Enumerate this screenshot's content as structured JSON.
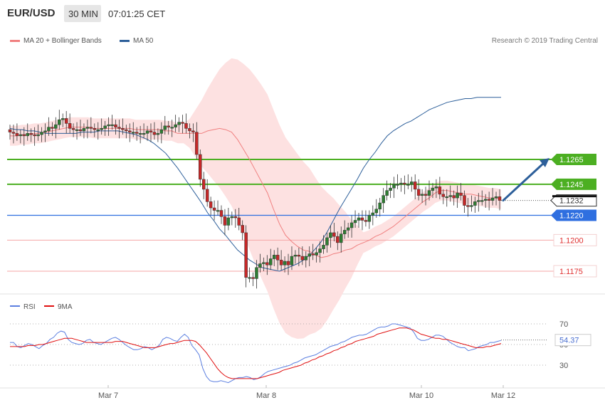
{
  "header": {
    "symbol": "EUR/USD",
    "timeframe": "30 MIN",
    "time": "07:01:25 CET"
  },
  "legend": {
    "ma20_label": "MA 20 + Bollinger Bands",
    "ma50_label": "MA 50",
    "copyright": "Research © 2019 Trading Central"
  },
  "colors": {
    "ma20": "#f08080",
    "ma50": "#2d5f9a",
    "band_fill": "#fde1e1",
    "candle_up": "#2e7d32",
    "candle_down": "#c62828",
    "target_line": "#4caf22",
    "pivot_line": "#2f6fe0",
    "support_line": "#f4a6a6",
    "arrow": "#2d5f9a",
    "rsi": "#5b7fe0",
    "rsi_ma": "#e01010"
  },
  "chart_data": [
    {
      "type": "candlestick",
      "title": "EUR/USD 30 MIN",
      "ylim": [
        1.115,
        1.1315
      ],
      "x_ticks": [
        "Mar 7",
        "Mar 8",
        "Mar 10",
        "Mar 12"
      ],
      "levels": [
        {
          "name": "target_2",
          "value": 1.1265,
          "label": "1.1265",
          "style": "target"
        },
        {
          "name": "target_1",
          "value": 1.1245,
          "label": "1.1245",
          "style": "target"
        },
        {
          "name": "last",
          "value": 1.1232,
          "label": "1.1232",
          "style": "last"
        },
        {
          "name": "pivot",
          "value": 1.122,
          "label": "1.1220",
          "style": "pivot"
        },
        {
          "name": "support_1",
          "value": 1.12,
          "label": "1.1200",
          "style": "support"
        },
        {
          "name": "support_2",
          "value": 1.1175,
          "label": "1.1175",
          "style": "support"
        }
      ],
      "current_price": 1.1232,
      "close_path": [
        1.1287,
        1.1286,
        1.1284,
        1.1285,
        1.1284,
        1.1286,
        1.1285,
        1.1284,
        1.1285,
        1.1287,
        1.1288,
        1.1291,
        1.129,
        1.1293,
        1.1297,
        1.1298,
        1.1294,
        1.129,
        1.1289,
        1.1289,
        1.1288,
        1.129,
        1.1291,
        1.129,
        1.1289,
        1.1289,
        1.129,
        1.1292,
        1.1293,
        1.1293,
        1.1291,
        1.129,
        1.1289,
        1.1288,
        1.1287,
        1.1287,
        1.1286,
        1.1286,
        1.1286,
        1.1288,
        1.1287,
        1.1285,
        1.1286,
        1.1289,
        1.1292,
        1.1291,
        1.1291,
        1.1293,
        1.1295,
        1.1294,
        1.129,
        1.1288,
        1.1287,
        1.1269,
        1.1249,
        1.1241,
        1.1231,
        1.1226,
        1.1224,
        1.1224,
        1.1219,
        1.1212,
        1.1218,
        1.1219,
        1.1218,
        1.1212,
        1.1206,
        1.117,
        1.117,
        1.1169,
        1.1178,
        1.1181,
        1.1182,
        1.118,
        1.1185,
        1.1188,
        1.1184,
        1.118,
        1.1183,
        1.118,
        1.1187,
        1.1188,
        1.1187,
        1.1184,
        1.1187,
        1.1189,
        1.1188,
        1.119,
        1.1193,
        1.1196,
        1.1202,
        1.1206,
        1.1203,
        1.1198,
        1.1205,
        1.1208,
        1.121,
        1.1214,
        1.1216,
        1.1218,
        1.1216,
        1.1215,
        1.122,
        1.1222,
        1.1225,
        1.123,
        1.1236,
        1.124,
        1.1242,
        1.1245,
        1.1245,
        1.1246,
        1.1245,
        1.1245,
        1.1247,
        1.1241,
        1.1236,
        1.1237,
        1.1236,
        1.124,
        1.1242,
        1.1243,
        1.1237,
        1.1235,
        1.1235,
        1.1236,
        1.1234,
        1.1238,
        1.1236,
        1.1228,
        1.1227,
        1.1228,
        1.1231,
        1.1232,
        1.1232,
        1.1233,
        1.1232,
        1.1234,
        1.1235,
        1.1232
      ],
      "ma20_path": [
        1.1284,
        1.1284,
        1.1285,
        1.1285,
        1.1286,
        1.1286,
        1.1287,
        1.1288,
        1.1289,
        1.129,
        1.1291,
        1.1291,
        1.1291,
        1.1291,
        1.129,
        1.129,
        1.129,
        1.129,
        1.129,
        1.129,
        1.129,
        1.1289,
        1.1289,
        1.1289,
        1.1289,
        1.1289,
        1.1288,
        1.1288,
        1.1286,
        1.1286,
        1.1286,
        1.1286,
        1.1286,
        1.1288,
        1.1289,
        1.129,
        1.1289,
        1.1287,
        1.1281,
        1.1273,
        1.1265,
        1.1256,
        1.1247,
        1.1238,
        1.1225,
        1.1213,
        1.1204,
        1.1199,
        1.1195,
        1.1192,
        1.1191,
        1.1188,
        1.1186,
        1.1187,
        1.1189,
        1.119,
        1.1192,
        1.1193,
        1.1196,
        1.1198,
        1.12,
        1.1203,
        1.1205,
        1.1208,
        1.1211,
        1.1215,
        1.1219,
        1.1223,
        1.1227,
        1.1231,
        1.1234,
        1.1238,
        1.124,
        1.124,
        1.1239,
        1.1238,
        1.1237,
        1.1237,
        1.1236,
        1.1235,
        1.1234,
        1.1234,
        1.1233
      ],
      "ma50_path": [
        1.129,
        1.1289,
        1.1289,
        1.1288,
        1.1288,
        1.1287,
        1.1286,
        1.1286,
        1.1286,
        1.1286,
        1.1286,
        1.1286,
        1.1287,
        1.1287,
        1.1287,
        1.1288,
        1.1288,
        1.1288,
        1.1288,
        1.1287,
        1.1286,
        1.1285,
        1.1283,
        1.1281,
        1.1278,
        1.1274,
        1.127,
        1.1264,
        1.1258,
        1.1251,
        1.1244,
        1.1237,
        1.123,
        1.1222,
        1.1216,
        1.1209,
        1.1204,
        1.1198,
        1.1192,
        1.1188,
        1.1184,
        1.1181,
        1.1178,
        1.1177,
        1.1176,
        1.1175,
        1.1177,
        1.1179,
        1.1181,
        1.1184,
        1.1188,
        1.1193,
        1.1199,
        1.1207,
        1.1216,
        1.1225,
        1.1233,
        1.1241,
        1.1249,
        1.1258,
        1.1265,
        1.1271,
        1.1278,
        1.1284,
        1.1288,
        1.1291,
        1.1294,
        1.1296,
        1.1299,
        1.1302,
        1.1305,
        1.1307,
        1.1309,
        1.1311,
        1.1312,
        1.1313,
        1.1314,
        1.1314,
        1.1315,
        1.1315,
        1.1315,
        1.1315,
        1.1315
      ],
      "forecast": {
        "from": 1.1232,
        "to": 1.1265
      }
    },
    {
      "type": "line",
      "title": "RSI",
      "ylim": [
        12,
        80
      ],
      "y_ticks": [
        70,
        50,
        30
      ],
      "series": [
        {
          "name": "RSI",
          "values": [
            52,
            52,
            48,
            47,
            49,
            51,
            50,
            48,
            46,
            49,
            51,
            55,
            57,
            61,
            63,
            62,
            55,
            52,
            51,
            50,
            51,
            54,
            55,
            52,
            51,
            50,
            52,
            54,
            56,
            57,
            55,
            52,
            49,
            47,
            45,
            45,
            46,
            48,
            47,
            45,
            47,
            49,
            55,
            57,
            56,
            54,
            53,
            57,
            60,
            57,
            49,
            45,
            40,
            27,
            19,
            15,
            14,
            14,
            15,
            14,
            13,
            15,
            17,
            18,
            18,
            19,
            18,
            16,
            17,
            19,
            22,
            24,
            25,
            26,
            27,
            28,
            29,
            30,
            32,
            33,
            35,
            37,
            38,
            39,
            40,
            42,
            44,
            46,
            48,
            49,
            50,
            52,
            53,
            55,
            57,
            58,
            59,
            59,
            60,
            62,
            64,
            66,
            67,
            67,
            68,
            70,
            70,
            69,
            68,
            67,
            66,
            62,
            56,
            54,
            54,
            55,
            57,
            59,
            59,
            58,
            55,
            52,
            50,
            48,
            47,
            47,
            44,
            45,
            46,
            48,
            49,
            50,
            52,
            52,
            53,
            54
          ]
        },
        {
          "name": "9MA",
          "values": [
            48,
            48,
            48,
            48,
            48,
            49,
            49,
            49,
            50,
            50,
            51,
            52,
            53,
            54,
            55,
            56,
            56,
            56,
            55,
            54,
            53,
            52,
            52,
            52,
            52,
            52,
            52,
            52,
            52,
            53,
            53,
            53,
            52,
            51,
            50,
            49,
            48,
            47,
            47,
            47,
            47,
            48,
            49,
            50,
            51,
            51,
            52,
            53,
            54,
            54,
            54,
            53,
            50,
            46,
            42,
            37,
            32,
            27,
            23,
            20,
            18,
            17,
            17,
            17,
            17,
            17,
            17,
            17,
            17,
            18,
            19,
            20,
            21,
            22,
            23,
            25,
            26,
            27,
            28,
            29,
            30,
            32,
            33,
            35,
            36,
            38,
            39,
            41,
            42,
            44,
            45,
            47,
            48,
            50,
            51,
            53,
            54,
            55,
            56,
            57,
            58,
            60,
            61,
            62,
            63,
            64,
            65,
            66,
            66,
            66,
            65,
            64,
            62,
            60,
            59,
            58,
            57,
            56,
            56,
            55,
            55,
            54,
            53,
            52,
            51,
            50,
            49,
            48,
            47,
            47,
            47,
            48,
            48,
            49,
            50,
            51
          ]
        }
      ],
      "current_value": "54.37"
    }
  ]
}
